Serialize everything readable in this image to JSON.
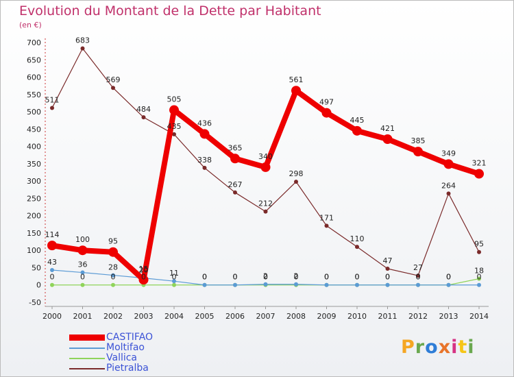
{
  "title": "Evolution du Montant de la Dette par Habitant",
  "subtitle": "(en €)",
  "logo": {
    "letters": [
      "P",
      "r",
      "o",
      "x",
      "i",
      "t",
      "i"
    ],
    "colors": [
      "#f5a623",
      "#6aa84f",
      "#2e7dd7",
      "#e8742a",
      "#d63384",
      "#f5c518",
      "#6aa84f"
    ]
  },
  "chart_data": {
    "type": "line",
    "x": [
      2000,
      2001,
      2002,
      2003,
      2004,
      2005,
      2006,
      2007,
      2008,
      2009,
      2010,
      2011,
      2012,
      2013,
      2014
    ],
    "ylim": [
      -50,
      700
    ],
    "yticks": [
      -50,
      0,
      50,
      100,
      150,
      200,
      250,
      300,
      350,
      400,
      450,
      500,
      550,
      600,
      650,
      700
    ],
    "grid": false,
    "legend": "bottom-left",
    "series": [
      {
        "name": "CASTIFAO",
        "color": "#ee0000",
        "values": [
          114,
          100,
          95,
          15,
          505,
          436,
          365,
          340,
          561,
          497,
          445,
          421,
          385,
          349,
          321
        ],
        "labels": [
          "114",
          "100",
          "95",
          "15",
          "505",
          "436",
          "365",
          "340",
          "561",
          "497",
          "445",
          "421",
          "385",
          "349",
          "321"
        ]
      },
      {
        "name": "Moltifao",
        "color": "#5b9bd5",
        "values": [
          43,
          36,
          28,
          20,
          11,
          0,
          0,
          2,
          2,
          0,
          0,
          0,
          0,
          0,
          0
        ],
        "labels": [
          "43",
          "36",
          "28",
          "20",
          "11",
          "0",
          "0",
          "2",
          "2",
          "0",
          "0",
          "0",
          "0",
          "0",
          "0"
        ]
      },
      {
        "name": "Vallica",
        "color": "#8fd45a",
        "values": [
          0,
          0,
          0,
          0,
          0,
          0,
          0,
          0,
          0,
          0,
          0,
          0,
          0,
          0,
          18
        ],
        "labels": [
          "0",
          "0",
          "0",
          "0",
          "0",
          "0",
          "0",
          "0",
          "0",
          "0",
          "0",
          "0",
          "0",
          "0",
          "18"
        ]
      },
      {
        "name": "Pietralba",
        "color": "#7a2a2a",
        "values": [
          511,
          683,
          569,
          484,
          435,
          338,
          267,
          212,
          298,
          171,
          110,
          47,
          27,
          264,
          95
        ],
        "labels": [
          "511",
          "683",
          "569",
          "484",
          "435",
          "338",
          "267",
          "212",
          "298",
          "171",
          "110",
          "47",
          "27",
          "264",
          "95"
        ]
      }
    ]
  }
}
